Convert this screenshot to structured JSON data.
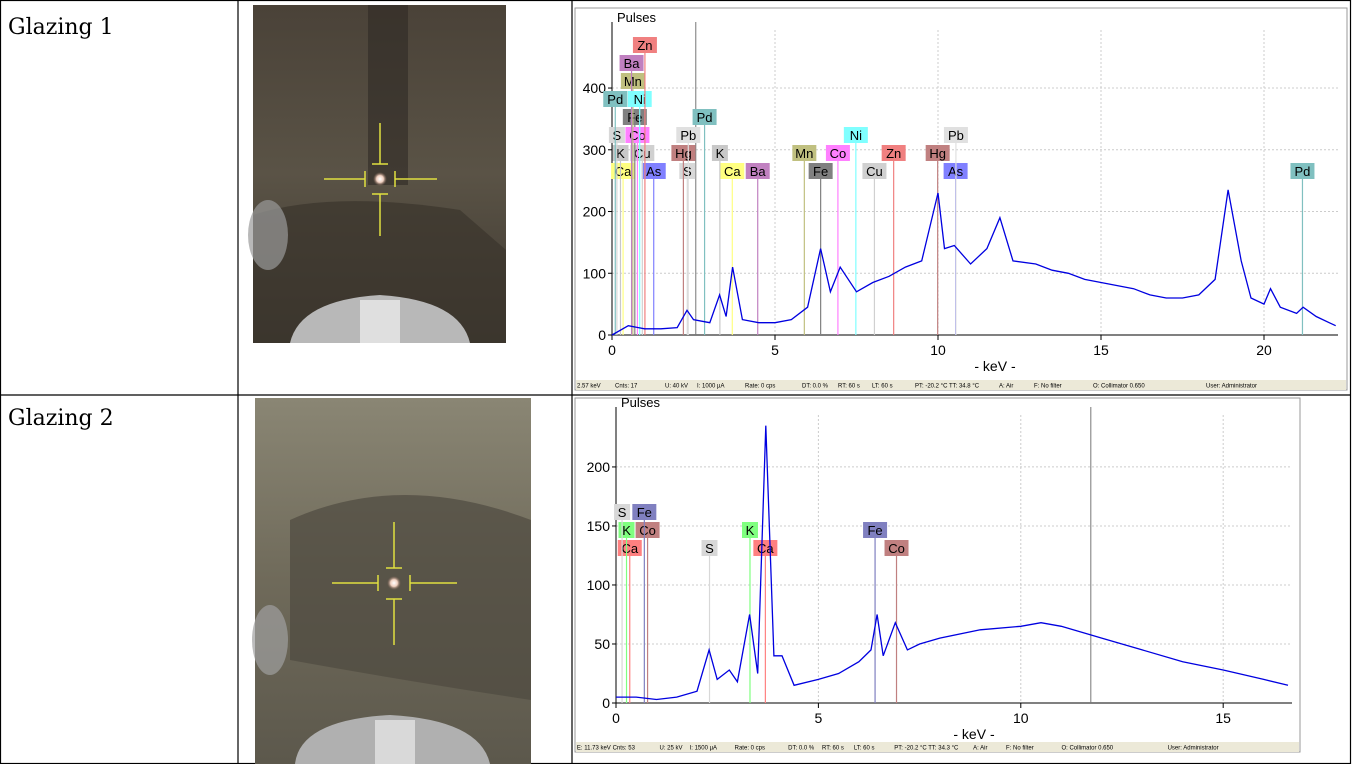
{
  "table": {
    "rows": [
      {
        "label": "Glazing 1"
      },
      {
        "label": "Glazing 2"
      }
    ]
  },
  "chart_data": [
    {
      "type": "line",
      "title": "Pulses",
      "x_label": "- keV -",
      "xlim": [
        0,
        22.27
      ],
      "ylim": [
        0,
        494
      ],
      "xticks": [
        0,
        5,
        10,
        15,
        20
      ],
      "yticks": [
        0,
        100,
        200,
        300,
        400
      ],
      "grid": true,
      "color": "#0000e0",
      "cursor": 2.57,
      "x": [
        0,
        0.5,
        1,
        1.5,
        2,
        2.3,
        2.5,
        3,
        3.3,
        3.5,
        3.7,
        4,
        4.5,
        5,
        5.5,
        6,
        6.4,
        6.7,
        7,
        7.5,
        8,
        8.5,
        9,
        9.5,
        10,
        10.2,
        10.5,
        11,
        11.5,
        11.9,
        12.3,
        13,
        13.5,
        14,
        14.5,
        15,
        15.5,
        16,
        16.5,
        17,
        17.5,
        18,
        18.5,
        18.9,
        19.3,
        19.6,
        20,
        20.2,
        20.5,
        21,
        21.2,
        21.6,
        22,
        22.2
      ],
      "values": [
        0,
        15,
        10,
        10,
        12,
        40,
        25,
        20,
        65,
        30,
        110,
        25,
        20,
        20,
        25,
        45,
        140,
        70,
        110,
        70,
        85,
        95,
        110,
        120,
        230,
        140,
        145,
        115,
        140,
        190,
        120,
        115,
        105,
        100,
        90,
        85,
        80,
        75,
        65,
        60,
        60,
        65,
        90,
        235,
        120,
        60,
        50,
        75,
        45,
        35,
        45,
        30,
        20,
        15
      ],
      "lines": [
        {
          "element": "Ca",
          "energy": 0.34,
          "color": "#ffff80"
        },
        {
          "element": "As",
          "energy": 1.28,
          "color": "#8080ff"
        },
        {
          "element": "S",
          "energy": 2.31,
          "color": "#d8d8d8"
        },
        {
          "element": "Ca",
          "energy": 3.69,
          "color": "#ffff80"
        },
        {
          "element": "Fe",
          "energy": 6.4,
          "color": "#808080"
        },
        {
          "element": "Cu",
          "energy": 8.05,
          "color": "#d0d0d0"
        },
        {
          "element": "As",
          "energy": 10.54,
          "color": "#8080ff"
        },
        {
          "element": "Pd",
          "energy": 21.18,
          "color": "#80c0c0"
        },
        {
          "element": "K",
          "energy": 0.26,
          "color": "#c8c8c8"
        },
        {
          "element": "Cu",
          "energy": 0.93,
          "color": "#d0d0d0"
        },
        {
          "element": "Hg",
          "energy": 2.19,
          "color": "#c08080"
        },
        {
          "element": "K",
          "energy": 3.31,
          "color": "#c8c8c8"
        },
        {
          "element": "Ba",
          "energy": 4.47,
          "color": "#c080c0"
        },
        {
          "element": "Mn",
          "energy": 5.9,
          "color": "#c0c080"
        },
        {
          "element": "Co",
          "energy": 6.93,
          "color": "#ff80ff"
        },
        {
          "element": "Zn",
          "energy": 8.64,
          "color": "#f08080"
        },
        {
          "element": "Hg",
          "energy": 9.99,
          "color": "#c08080"
        },
        {
          "element": "S",
          "energy": 0.15,
          "color": "#d8d8d8"
        },
        {
          "element": "Fe",
          "energy": 0.7,
          "color": "#808080"
        },
        {
          "element": "Pb",
          "energy": 2.34,
          "color": "#e0e0e0"
        },
        {
          "element": "Ni",
          "energy": 7.48,
          "color": "#80ffff"
        },
        {
          "element": "Pb",
          "energy": 10.55,
          "color": "#e0e0e0"
        },
        {
          "element": "Pd",
          "energy": 0.1,
          "color": "#80c0c0"
        },
        {
          "element": "Co",
          "energy": 0.78,
          "color": "#ff80ff"
        },
        {
          "element": "Pd",
          "energy": 2.84,
          "color": "#80c0c0"
        },
        {
          "element": "Mn",
          "energy": 0.64,
          "color": "#c0c080"
        },
        {
          "element": "Ba",
          "energy": 0.6,
          "color": "#c080c0"
        },
        {
          "element": "Ni",
          "energy": 0.85,
          "color": "#80ffff"
        },
        {
          "element": "Zn",
          "energy": 1.01,
          "color": "#f08080"
        }
      ],
      "status": [
        "2.57 keV",
        "Cnts: 17",
        "U: 40 kV",
        "I: 1000 µA",
        "Rate: 0 cps",
        "DT: 0.0 %",
        "RT: 60 s",
        "LT: 60 s",
        "PT: -20.2 °C  TT: 34.8 °C",
        "A: Air",
        "F: No filter",
        "O: Collimator 0.650",
        "User: Administrator"
      ]
    },
    {
      "type": "line",
      "title": "Pulses",
      "x_label": "- keV -",
      "xlim": [
        0,
        16.7
      ],
      "ylim": [
        0,
        244
      ],
      "xticks": [
        0,
        5,
        10,
        15
      ],
      "yticks": [
        0,
        50,
        100,
        150,
        200
      ],
      "grid": true,
      "color": "#0000e0",
      "cursor": 11.73,
      "x": [
        0,
        0.5,
        1,
        1.5,
        2,
        2.3,
        2.5,
        2.8,
        3,
        3.3,
        3.5,
        3.7,
        3.9,
        4.1,
        4.4,
        5,
        5.5,
        6,
        6.3,
        6.45,
        6.6,
        6.9,
        7.2,
        7.5,
        8,
        9,
        10,
        10.5,
        11,
        12,
        13,
        14,
        15,
        16,
        16.6
      ],
      "values": [
        5,
        5,
        3,
        5,
        10,
        45,
        20,
        28,
        18,
        75,
        25,
        235,
        40,
        40,
        15,
        20,
        25,
        35,
        45,
        75,
        40,
        68,
        45,
        50,
        55,
        62,
        65,
        68,
        65,
        55,
        45,
        35,
        28,
        20,
        15
      ],
      "lines": [
        {
          "element": "Ca",
          "energy": 0.34,
          "color": "#ff8080"
        },
        {
          "element": "S",
          "energy": 2.31,
          "color": "#d8d8d8"
        },
        {
          "element": "Ca",
          "energy": 3.69,
          "color": "#ff8080"
        },
        {
          "element": "Co",
          "energy": 6.93,
          "color": "#c08080"
        },
        {
          "element": "K",
          "energy": 0.26,
          "color": "#80ff80"
        },
        {
          "element": "Co",
          "energy": 0.78,
          "color": "#c08080"
        },
        {
          "element": "K",
          "energy": 3.31,
          "color": "#80ff80"
        },
        {
          "element": "Fe",
          "energy": 6.4,
          "color": "#8080c0"
        },
        {
          "element": "S",
          "energy": 0.15,
          "color": "#d8d8d8"
        },
        {
          "element": "Fe",
          "energy": 0.7,
          "color": "#8080c0"
        }
      ],
      "status": [
        "E: 11.73 keV",
        "Cnts: 53",
        "U: 25 kV",
        "I: 1500 µA",
        "Rate: 0 cps",
        "DT: 0.0 %",
        "RT: 60 s",
        "LT: 60 s",
        "PT: -20.2 °C  TT: 34.3 °C",
        "A: Air",
        "F: No filter",
        "O: Collimator 0.650",
        "User: Administrator"
      ]
    }
  ]
}
